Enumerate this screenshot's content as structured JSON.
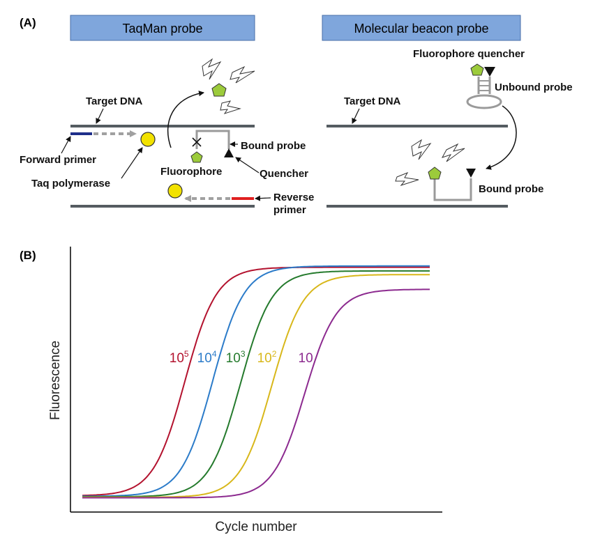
{
  "panel_a": {
    "label": "(A)",
    "taqman": {
      "title": "TaqMan probe",
      "target_dna": "Target DNA",
      "forward_primer": "Forward primer",
      "taq_polymerase": "Taq polymerase",
      "bound_probe": "Bound probe",
      "fluorophore": "Fluorophore",
      "quencher": "Quencher",
      "reverse_primer_1": "Reverse",
      "reverse_primer_2": "primer"
    },
    "beacon": {
      "title": "Molecular beacon probe",
      "fluorophore_quencher": "Fluorophore quencher",
      "unbound_probe": "Unbound probe",
      "target_dna": "Target DNA",
      "bound_probe": "Bound probe"
    }
  },
  "panel_b": {
    "label": "(B)",
    "xlabel": "Cycle number",
    "ylabel": "Fluorescence"
  },
  "colors": {
    "header_fill": "#7fa6dc",
    "dna_strand": "#555c61",
    "fluorophore": "#9ccb3b",
    "polymerase": "#f2e200",
    "forward_primer": "#1f2f8a",
    "reverse_primer": "#e02020",
    "probe": "#9a9a9a"
  },
  "chart_data": {
    "type": "line",
    "xlabel": "Cycle number",
    "ylabel": "Fluorescence",
    "series": [
      {
        "name": "10^5",
        "base": "10",
        "exp": "5",
        "color": "#b3122e",
        "midpoint": 0.295,
        "plateau": 0.95
      },
      {
        "name": "10^4",
        "base": "10",
        "exp": "4",
        "color": "#2b7bc9",
        "midpoint": 0.375,
        "plateau": 0.955
      },
      {
        "name": "10^3",
        "base": "10",
        "exp": "3",
        "color": "#247a2c",
        "midpoint": 0.455,
        "plateau": 0.935
      },
      {
        "name": "10^2",
        "base": "10",
        "exp": "2",
        "color": "#d8b71a",
        "midpoint": 0.545,
        "plateau": 0.92
      },
      {
        "name": "10",
        "base": "10",
        "exp": "",
        "color": "#8c2a8f",
        "midpoint": 0.64,
        "plateau": 0.86
      }
    ]
  }
}
